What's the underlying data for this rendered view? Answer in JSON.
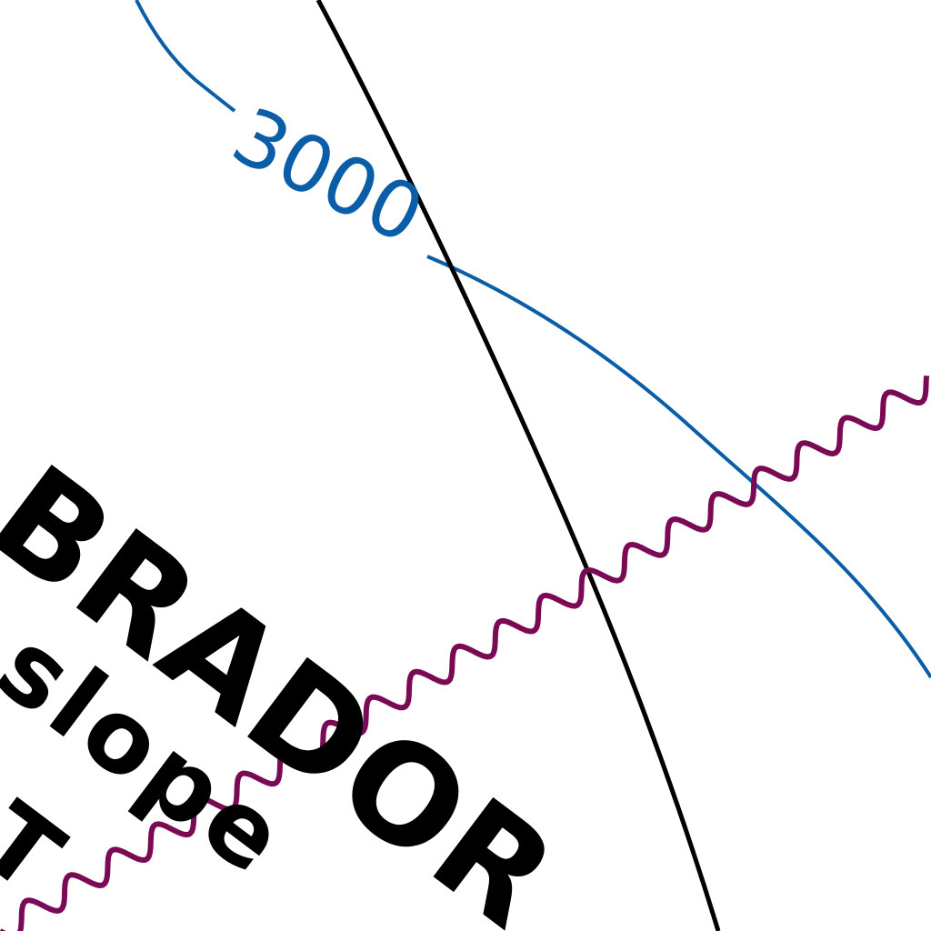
{
  "map": {
    "contour": {
      "label": "3000",
      "color": "#0a5ea8"
    },
    "boundary_line": {
      "color": "#000000"
    },
    "wavy_line": {
      "color": "#7a0a55"
    },
    "region_labels": [
      {
        "text": "BRADOR"
      },
      {
        "text": "slope"
      },
      {
        "text": "T"
      }
    ],
    "text_color": "#000000"
  }
}
